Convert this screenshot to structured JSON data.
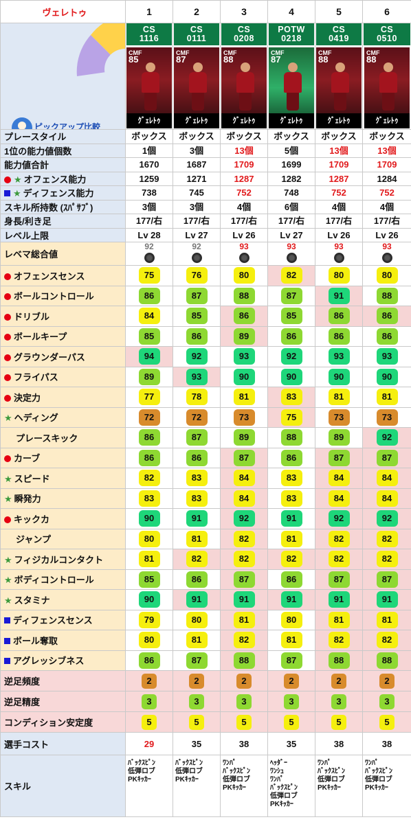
{
  "header": {
    "player_name": "ヴェレトゥ",
    "cols": [
      "1",
      "2",
      "3",
      "4",
      "5",
      "6"
    ]
  },
  "pickup_label": "ピックアップ比較",
  "cards": [
    {
      "series": "CS",
      "code": "1116",
      "pos": "CMF",
      "rating": "85",
      "name": "ｸﾞｪﾚﾄｩ",
      "potw": false
    },
    {
      "series": "CS",
      "code": "0111",
      "pos": "CMF",
      "rating": "87",
      "name": "ｸﾞｪﾚﾄｩ",
      "potw": false
    },
    {
      "series": "CS",
      "code": "0208",
      "pos": "CMF",
      "rating": "88",
      "name": "ｸﾞｪﾚﾄｩ",
      "potw": false
    },
    {
      "series": "POTW",
      "code": "0218",
      "pos": "CMF",
      "rating": "87",
      "name": "ｸﾞｪﾚﾄｩ",
      "potw": true
    },
    {
      "series": "CS",
      "code": "0419",
      "pos": "CMF",
      "rating": "88",
      "name": "ｸﾞｪﾚﾄｩ",
      "potw": false
    },
    {
      "series": "CS",
      "code": "0510",
      "pos": "CMF",
      "rating": "88",
      "name": "ｸﾞｪﾚﾄｩ",
      "potw": false
    }
  ],
  "info_rows": [
    {
      "label": "プレースタイル",
      "icon": "none",
      "values": [
        "ボックス",
        "ボックス",
        "ボックス",
        "ボックス",
        "ボックス",
        "ボックス"
      ],
      "red": [
        false,
        false,
        false,
        false,
        false,
        false
      ]
    },
    {
      "label": "1位の能力値個数",
      "icon": "none",
      "values": [
        "1個",
        "3個",
        "13個",
        "5個",
        "13個",
        "13個"
      ],
      "red": [
        false,
        false,
        true,
        false,
        true,
        true
      ]
    },
    {
      "label": "能力値合計",
      "icon": "none",
      "values": [
        "1670",
        "1687",
        "1709",
        "1699",
        "1709",
        "1709"
      ],
      "red": [
        false,
        false,
        true,
        false,
        true,
        true
      ]
    },
    {
      "label": "オフェンス能力",
      "icon": "dotstar",
      "values": [
        "1259",
        "1271",
        "1287",
        "1282",
        "1287",
        "1284"
      ],
      "red": [
        false,
        false,
        true,
        false,
        true,
        false
      ]
    },
    {
      "label": "ディフェンス能力",
      "icon": "sqstar",
      "values": [
        "738",
        "745",
        "752",
        "748",
        "752",
        "752"
      ],
      "red": [
        false,
        false,
        true,
        false,
        true,
        true
      ]
    },
    {
      "label": "スキル所持数 (ｽﾊﾟｻﾌﾞ)",
      "icon": "none",
      "values": [
        "3個",
        "3個",
        "4個",
        "6個",
        "4個",
        "4個"
      ],
      "red": [
        false,
        false,
        false,
        false,
        false,
        false
      ]
    },
    {
      "label": "身長/利き足",
      "icon": "none",
      "values": [
        "177/右",
        "177/右",
        "177/右",
        "177/右",
        "177/右",
        "177/右"
      ],
      "red": [
        false,
        false,
        false,
        false,
        false,
        false
      ]
    },
    {
      "label": "レベル上限",
      "icon": "none",
      "values": [
        "Lv 28",
        "Lv 27",
        "Lv 26",
        "Lv 27",
        "Lv 26",
        "Lv 26"
      ],
      "red": [
        false,
        false,
        false,
        false,
        false,
        false
      ]
    }
  ],
  "revema": {
    "label": "レベマ総合値",
    "values": [
      "92",
      "92",
      "93",
      "93",
      "93",
      "93"
    ],
    "red": [
      false,
      false,
      true,
      true,
      true,
      true
    ]
  },
  "stats": [
    {
      "label": "オフェンスセンス",
      "icon": "dot",
      "values": [
        75,
        76,
        80,
        82,
        80,
        80
      ],
      "best": [
        false,
        false,
        false,
        true,
        false,
        false
      ]
    },
    {
      "label": "ボールコントロール",
      "icon": "dot",
      "values": [
        86,
        87,
        88,
        87,
        91,
        88
      ],
      "best": [
        false,
        false,
        false,
        false,
        true,
        false
      ]
    },
    {
      "label": "ドリブル",
      "icon": "dot",
      "values": [
        84,
        85,
        86,
        85,
        86,
        86
      ],
      "best": [
        false,
        false,
        true,
        false,
        true,
        true
      ]
    },
    {
      "label": "ボールキープ",
      "icon": "dot",
      "values": [
        85,
        86,
        89,
        86,
        86,
        86
      ],
      "best": [
        false,
        false,
        true,
        false,
        false,
        false
      ]
    },
    {
      "label": "グラウンダーパス",
      "icon": "dot",
      "values": [
        94,
        92,
        93,
        92,
        93,
        93
      ],
      "best": [
        true,
        false,
        false,
        false,
        false,
        false
      ]
    },
    {
      "label": "フライパス",
      "icon": "dot",
      "values": [
        89,
        93,
        90,
        90,
        90,
        90
      ],
      "best": [
        false,
        true,
        false,
        false,
        false,
        false
      ]
    },
    {
      "label": "決定力",
      "icon": "dot",
      "values": [
        77,
        78,
        81,
        83,
        81,
        81
      ],
      "best": [
        false,
        false,
        false,
        true,
        false,
        false
      ]
    },
    {
      "label": "ヘディング",
      "icon": "star",
      "values": [
        72,
        72,
        73,
        75,
        73,
        73
      ],
      "best": [
        false,
        false,
        false,
        true,
        false,
        false
      ]
    },
    {
      "label": "プレースキック",
      "icon": "none",
      "values": [
        86,
        87,
        89,
        88,
        89,
        92
      ],
      "best": [
        false,
        false,
        false,
        false,
        false,
        true
      ]
    },
    {
      "label": "カーブ",
      "icon": "dot",
      "values": [
        86,
        86,
        87,
        86,
        87,
        87
      ],
      "best": [
        false,
        false,
        true,
        false,
        true,
        true
      ]
    },
    {
      "label": "スピード",
      "icon": "star",
      "values": [
        82,
        83,
        84,
        83,
        84,
        84
      ],
      "best": [
        false,
        false,
        true,
        false,
        true,
        true
      ]
    },
    {
      "label": "瞬発力",
      "icon": "star",
      "values": [
        83,
        83,
        84,
        83,
        84,
        84
      ],
      "best": [
        false,
        false,
        true,
        false,
        true,
        true
      ]
    },
    {
      "label": "キックカ",
      "icon": "dot",
      "values": [
        90,
        91,
        92,
        91,
        92,
        92
      ],
      "best": [
        false,
        false,
        true,
        false,
        true,
        true
      ]
    },
    {
      "label": "ジャンプ",
      "icon": "none",
      "values": [
        80,
        81,
        82,
        81,
        82,
        82
      ],
      "best": [
        false,
        false,
        true,
        false,
        true,
        true
      ]
    },
    {
      "label": "フィジカルコンタクト",
      "icon": "star",
      "values": [
        81,
        82,
        82,
        82,
        82,
        82
      ],
      "best": [
        false,
        true,
        true,
        true,
        true,
        true
      ]
    },
    {
      "label": "ボディコントロール",
      "icon": "star",
      "values": [
        85,
        86,
        87,
        86,
        87,
        87
      ],
      "best": [
        false,
        false,
        true,
        false,
        true,
        true
      ]
    },
    {
      "label": "スタミナ",
      "icon": "star",
      "values": [
        90,
        91,
        91,
        91,
        91,
        91
      ],
      "best": [
        false,
        true,
        true,
        true,
        true,
        true
      ]
    },
    {
      "label": "ディフェンスセンス",
      "icon": "sq",
      "values": [
        79,
        80,
        81,
        80,
        81,
        81
      ],
      "best": [
        false,
        false,
        true,
        false,
        true,
        true
      ]
    },
    {
      "label": "ボール奪取",
      "icon": "sq",
      "values": [
        80,
        81,
        82,
        81,
        82,
        82
      ],
      "best": [
        false,
        false,
        true,
        false,
        true,
        true
      ]
    },
    {
      "label": "アグレッシブネス",
      "icon": "sq",
      "values": [
        86,
        87,
        88,
        87,
        88,
        88
      ],
      "best": [
        false,
        false,
        true,
        false,
        true,
        true
      ]
    }
  ],
  "minor_rows": [
    {
      "label": "逆足頻度",
      "color": "orange",
      "values": [
        "2",
        "2",
        "2",
        "2",
        "2",
        "2"
      ]
    },
    {
      "label": "逆足精度",
      "color": "lime",
      "values": [
        "3",
        "3",
        "3",
        "3",
        "3",
        "3"
      ]
    },
    {
      "label": "コンディション安定度",
      "color": "yellow",
      "values": [
        "5",
        "5",
        "5",
        "5",
        "5",
        "5"
      ]
    }
  ],
  "cost": {
    "label": "選手コスト",
    "values": [
      "29",
      "35",
      "38",
      "35",
      "38",
      "38"
    ],
    "red": [
      true,
      false,
      false,
      false,
      false,
      false
    ]
  },
  "skills": {
    "label": "スキル",
    "values": [
      [
        "ﾊﾞｯｸｽﾋﾟﾝ",
        "低弾ロブ",
        "PKｷｯｶｰ"
      ],
      [
        "ﾊﾞｯｸｽﾋﾟﾝ",
        "低弾ロブ",
        "PKｷｯｶｰ"
      ],
      [
        "ﾜﾝﾊﾟ",
        "ﾊﾞｯｸｽﾋﾟﾝ",
        "低弾ロブ",
        "PKｷｯｶｰ"
      ],
      [
        "ﾍｯﾀﾞｰ",
        "ﾜﾝｼｭ",
        "ﾜﾝﾊﾟ",
        "ﾊﾞｯｸｽﾋﾟﾝ",
        "低弾ロブ",
        "PKｷｯｶｰ"
      ],
      [
        "ﾜﾝﾊﾟ",
        "ﾊﾞｯｸｽﾋﾟﾝ",
        "低弾ロブ",
        "PKｷｯｶｰ"
      ],
      [
        "ﾜﾝﾊﾟ",
        "ﾊﾞｯｸｽﾋﾟﾝ",
        "低弾ロブ",
        "PKｷｯｶｰ"
      ]
    ]
  },
  "colors": {
    "yellow": "#f5ef0e",
    "lime": "#8ed832",
    "green": "#1ed67a",
    "orange": "#d88b2c",
    "red_text": "#e1191b",
    "label_bg": "#dfe8f4",
    "section_bg": "#fdecc8",
    "best_bg": "#f6d5d5"
  }
}
